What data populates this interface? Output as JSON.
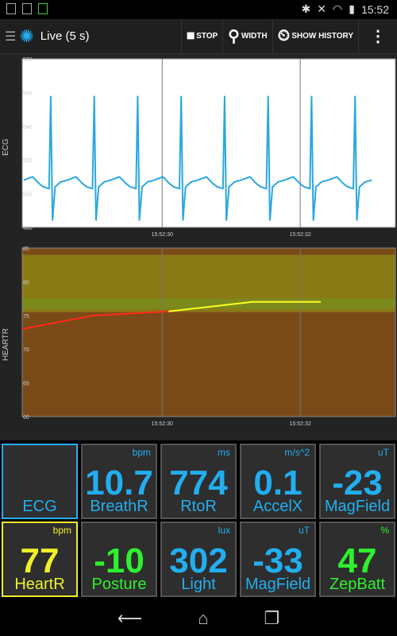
{
  "status": {
    "time": "15:52"
  },
  "actionbar": {
    "title": "Live (5 s)",
    "stop_label": "STOP",
    "width_label": "WIDTH",
    "history_label": "SHOW HISTORY"
  },
  "chart_data": [
    {
      "type": "line",
      "ylabel": "ECG",
      "ylim": [
        480,
        580
      ],
      "yticks": [
        "580",
        "560",
        "540",
        "520",
        "500",
        "480"
      ],
      "xticks": [
        "15:52:30",
        "15:52:32"
      ],
      "grid": true,
      "series": [
        {
          "color": "#2aa7e0",
          "beats": 8,
          "baseline": 506,
          "peak": 558,
          "trough": 484
        }
      ]
    },
    {
      "type": "line",
      "ylabel": "HEARTR",
      "ylim": [
        60,
        85
      ],
      "yticks": [
        "85",
        "80",
        "75",
        "70",
        "65",
        "60"
      ],
      "xticks": [
        "15:52:30",
        "15:52:32"
      ],
      "bands": [
        {
          "from": 75.5,
          "to": 84,
          "color": "#8a7a16"
        },
        {
          "from": 76,
          "to": 77.5,
          "color": "#7b8a1a"
        }
      ],
      "series": [
        {
          "color": "#ff2a1a",
          "x": [
            0,
            0.24,
            0.49
          ],
          "y": [
            73,
            75,
            75.6
          ]
        },
        {
          "color": "#ffff22",
          "x": [
            0.49,
            0.77,
            1.0
          ],
          "y": [
            75.6,
            77,
            77
          ]
        }
      ]
    }
  ],
  "tiles": [
    {
      "name": "ECG",
      "value": "",
      "unit": "",
      "color": "#22aef0",
      "border": "#22aef0"
    },
    {
      "name": "BreathR",
      "value": "10.7",
      "unit": "bpm",
      "color": "#22aef0",
      "border": "#555555"
    },
    {
      "name": "RtoR",
      "value": "774",
      "unit": "ms",
      "color": "#22aef0",
      "border": "#555555"
    },
    {
      "name": "AccelX",
      "value": "0.1",
      "unit": "m/s^2",
      "color": "#22aef0",
      "border": "#555555"
    },
    {
      "name": "MagField",
      "value": "-23",
      "unit": "uT",
      "color": "#22aef0",
      "border": "#555555"
    },
    {
      "name": "HeartR",
      "value": "77",
      "unit": "bpm",
      "color": "#f0f02a",
      "border": "#f0f02a"
    },
    {
      "name": "Posture",
      "value": "-10",
      "unit": "",
      "color": "#2ef02e",
      "border": "#555555"
    },
    {
      "name": "Light",
      "value": "302",
      "unit": "lux",
      "color": "#22aef0",
      "border": "#555555"
    },
    {
      "name": "MagField",
      "value": "-33",
      "unit": "uT",
      "color": "#22aef0",
      "border": "#555555"
    },
    {
      "name": "ZepBatt",
      "value": "47",
      "unit": "%",
      "color": "#2ef02e",
      "border": "#555555"
    }
  ]
}
